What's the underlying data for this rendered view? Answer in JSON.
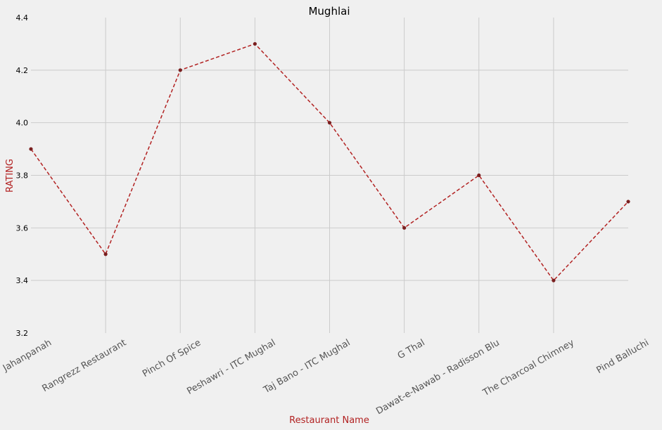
{
  "chart_data": {
    "type": "line",
    "title": "Mughlai",
    "xlabel": "Restaurant Name",
    "ylabel": "RATING",
    "categories": [
      "Jahanpanah",
      "Rangrezz Restaurant",
      "Pinch Of Spice",
      "Peshawri - ITC Mughal",
      "Taj Bano - ITC Mughal",
      "G Thal",
      "Dawat-e-Nawab - Radisson Blu",
      "The Charcoal Chimney",
      "Pind Balluchi"
    ],
    "values": [
      3.9,
      3.5,
      4.2,
      4.3,
      4.0,
      3.6,
      3.8,
      3.4,
      3.7
    ],
    "ylim": [
      3.2,
      4.4
    ],
    "yticks": [
      "3.2",
      "3.4",
      "3.6",
      "3.8",
      "4.0",
      "4.2",
      "4.4"
    ],
    "grid": true,
    "line_style": "dashed",
    "colors": {
      "line": "#b22222",
      "marker": "#7a1f1f",
      "axis_label": "#b22222",
      "grid": "#cbcbcb",
      "background": "#f0f0f0"
    }
  }
}
